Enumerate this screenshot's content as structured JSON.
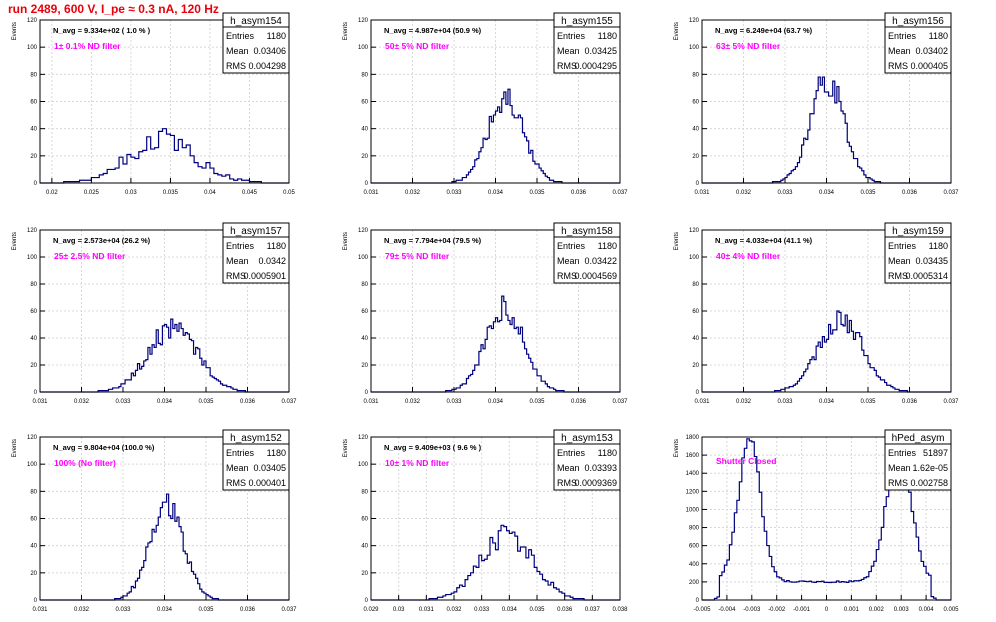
{
  "title": "run 2489,   600 V, I_pe ≈ 0.3 nA, 120 Hz",
  "colors": {
    "title": "#e8000b",
    "histogram": "#00007f",
    "annotation": "#ff00ff",
    "grid": "#d8d8d8",
    "frame": "#000000"
  },
  "chart_data": [
    {
      "type": "histogram",
      "name": "h_asym154",
      "stats": {
        "entries": "1180",
        "mean": "0.03406",
        "rms": "0.004298"
      },
      "navg": "N_avg = 9.334e+02 ( 1.0 % )",
      "annotation": "1± 0.1% ND filter",
      "ylabel": "Events",
      "xlabel": "",
      "xlim": [
        0.0185,
        0.05
      ],
      "ylim": [
        0,
        120
      ],
      "xticks": [
        0.02,
        0.025,
        0.03,
        0.035,
        0.04,
        0.045,
        0.05
      ],
      "xtick_labels": [
        "0.02",
        "0.025",
        "0.03",
        "0.035",
        "0.04",
        "0.045",
        "0.05"
      ],
      "yticks": [
        0,
        20,
        40,
        60,
        80,
        100,
        120
      ],
      "shape": "gauss",
      "mu": 0.034,
      "sigma": 0.0043,
      "peak": 32,
      "bin_width": 0.0005,
      "seed": 154,
      "noise": 0.3
    },
    {
      "type": "histogram",
      "name": "h_asym155",
      "stats": {
        "entries": "1180",
        "mean": "0.03425",
        "rms": "0.0004295"
      },
      "navg": "N_avg = 4.987e+04 (50.9 %)",
      "annotation": "50± 5% ND filter",
      "ylabel": "Events",
      "xlabel": "",
      "xlim": [
        0.031,
        0.037
      ],
      "ylim": [
        0,
        120
      ],
      "xticks": [
        0.031,
        0.032,
        0.033,
        0.034,
        0.035,
        0.036,
        0.037
      ],
      "xtick_labels": [
        "0.031",
        "0.032",
        "0.033",
        "0.034",
        "0.035",
        "0.036",
        "0.037"
      ],
      "yticks": [
        0,
        20,
        40,
        60,
        80,
        100,
        120
      ],
      "shape": "gauss",
      "mu": 0.03425,
      "sigma": 0.00043,
      "peak": 62,
      "bin_width": 5e-05,
      "seed": 155,
      "noise": 0.15
    },
    {
      "type": "histogram",
      "name": "h_asym156",
      "stats": {
        "entries": "1180",
        "mean": "0.03402",
        "rms": "0.000405"
      },
      "navg": "N_avg = 6.249e+04 (63.7 %)",
      "annotation": "63± 5% ND filter",
      "ylabel": "Events",
      "xlabel": "",
      "xlim": [
        0.031,
        0.037
      ],
      "ylim": [
        0,
        120
      ],
      "xticks": [
        0.031,
        0.032,
        0.033,
        0.034,
        0.035,
        0.036,
        0.037
      ],
      "xtick_labels": [
        "0.031",
        "0.032",
        "0.033",
        "0.034",
        "0.035",
        "0.036",
        "0.037"
      ],
      "yticks": [
        0,
        20,
        40,
        60,
        80,
        100,
        120
      ],
      "shape": "gauss",
      "mu": 0.03402,
      "sigma": 0.000405,
      "peak": 76,
      "bin_width": 5e-05,
      "seed": 156,
      "noise": 0.15
    },
    {
      "type": "histogram",
      "name": "h_asym157",
      "stats": {
        "entries": "1180",
        "mean": "0.0342",
        "rms": "0.0005901"
      },
      "navg": "N_avg = 2.573e+04 (26.2 %)",
      "annotation": "25± 2.5% ND filter",
      "ylabel": "Events",
      "xlabel": "",
      "xlim": [
        0.031,
        0.037
      ],
      "ylim": [
        0,
        120
      ],
      "xticks": [
        0.031,
        0.032,
        0.033,
        0.034,
        0.035,
        0.036,
        0.037
      ],
      "xtick_labels": [
        "0.031",
        "0.032",
        "0.033",
        "0.034",
        "0.035",
        "0.036",
        "0.037"
      ],
      "yticks": [
        0,
        20,
        40,
        60,
        80,
        100,
        120
      ],
      "shape": "gauss",
      "mu": 0.0342,
      "sigma": 0.00059,
      "peak": 48,
      "bin_width": 5e-05,
      "seed": 157,
      "noise": 0.18
    },
    {
      "type": "histogram",
      "name": "h_asym158",
      "stats": {
        "entries": "1180",
        "mean": "0.03422",
        "rms": "0.0004569"
      },
      "navg": "N_avg = 7.794e+04 (79.5 %)",
      "annotation": "79± 5% ND filter",
      "ylabel": "Events",
      "xlabel": "",
      "xlim": [
        0.031,
        0.037
      ],
      "ylim": [
        0,
        120
      ],
      "xticks": [
        0.031,
        0.032,
        0.033,
        0.034,
        0.035,
        0.036,
        0.037
      ],
      "xtick_labels": [
        "0.031",
        "0.032",
        "0.033",
        "0.034",
        "0.035",
        "0.036",
        "0.037"
      ],
      "yticks": [
        0,
        20,
        40,
        60,
        80,
        100,
        120
      ],
      "shape": "gauss",
      "mu": 0.03422,
      "sigma": 0.000457,
      "peak": 62,
      "bin_width": 5e-05,
      "seed": 158,
      "noise": 0.15
    },
    {
      "type": "histogram",
      "name": "h_asym159",
      "stats": {
        "entries": "1180",
        "mean": "0.03435",
        "rms": "0.0005314"
      },
      "navg": "N_avg = 4.033e+04 (41.1 %)",
      "annotation": "40± 4% ND filter",
      "ylabel": "Events",
      "xlabel": "",
      "xlim": [
        0.031,
        0.037
      ],
      "ylim": [
        0,
        120
      ],
      "xticks": [
        0.031,
        0.032,
        0.033,
        0.034,
        0.035,
        0.036,
        0.037
      ],
      "xtick_labels": [
        "0.031",
        "0.032",
        "0.033",
        "0.034",
        "0.035",
        "0.036",
        "0.037"
      ],
      "yticks": [
        0,
        20,
        40,
        60,
        80,
        100,
        120
      ],
      "shape": "gauss",
      "mu": 0.03435,
      "sigma": 0.00053,
      "peak": 54,
      "bin_width": 5e-05,
      "seed": 159,
      "noise": 0.15
    },
    {
      "type": "histogram",
      "name": "h_asym152",
      "stats": {
        "entries": "1180",
        "mean": "0.03405",
        "rms": "0.000401"
      },
      "navg": "N_avg = 9.804e+04 (100.0 %)",
      "annotation": "100% (No filter)",
      "ylabel": "Events",
      "xlabel": "",
      "xlim": [
        0.031,
        0.037
      ],
      "ylim": [
        0,
        120
      ],
      "xticks": [
        0.031,
        0.032,
        0.033,
        0.034,
        0.035,
        0.036,
        0.037
      ],
      "xtick_labels": [
        "0.031",
        "0.032",
        "0.033",
        "0.034",
        "0.035",
        "0.036",
        "0.037"
      ],
      "yticks": [
        0,
        20,
        40,
        60,
        80,
        100,
        120
      ],
      "shape": "gauss",
      "mu": 0.03405,
      "sigma": 0.0004,
      "peak": 72,
      "bin_width": 5e-05,
      "seed": 152,
      "noise": 0.15
    },
    {
      "type": "histogram",
      "name": "h_asym153",
      "stats": {
        "entries": "1180",
        "mean": "0.03393",
        "rms": "0.0009369"
      },
      "navg": "N_avg = 9.409e+03 ( 9.6 % )",
      "annotation": "10± 1% ND filter",
      "ylabel": "Events",
      "xlabel": "",
      "xlim": [
        0.029,
        0.038
      ],
      "ylim": [
        0,
        120
      ],
      "xticks": [
        0.029,
        0.03,
        0.031,
        0.032,
        0.033,
        0.034,
        0.035,
        0.036,
        0.037,
        0.038
      ],
      "xtick_labels": [
        "0.029",
        "0.03",
        "0.031",
        "0.032",
        "0.033",
        "0.034",
        "0.035",
        "0.036",
        "0.037",
        "0.038"
      ],
      "yticks": [
        0,
        20,
        40,
        60,
        80,
        100,
        120
      ],
      "shape": "gauss",
      "mu": 0.03393,
      "sigma": 0.00094,
      "peak": 48,
      "bin_width": 0.0001,
      "seed": 153,
      "noise": 0.18
    },
    {
      "type": "histogram",
      "name": "hPed_asym",
      "stats": {
        "entries": "51897",
        "mean": "1.62e-05",
        "rms": "0.002758"
      },
      "navg": "",
      "annotation": "Shutter Closed",
      "ylabel": "Events",
      "xlabel": "",
      "xlim": [
        -0.005,
        0.005
      ],
      "ylim": [
        0,
        1800
      ],
      "xticks": [
        -0.005,
        -0.004,
        -0.003,
        -0.002,
        -0.001,
        0,
        0.001,
        0.002,
        0.003,
        0.004,
        0.005
      ],
      "xtick_labels": [
        "-0.005",
        "-0.004",
        "-0.003",
        "-0.002",
        "-0.001",
        "0",
        "0.001",
        "0.002",
        "0.003",
        "0.004",
        "0.005"
      ],
      "yticks": [
        0,
        200,
        400,
        600,
        800,
        1000,
        1200,
        1400,
        1600,
        1800
      ],
      "shape": "bimodal",
      "peaks": [
        [
          -0.0031,
          0.00045,
          1560
        ],
        [
          0.0029,
          0.0005,
          1440
        ]
      ],
      "floor": 200,
      "edges": [
        -0.0043,
        0.0042
      ],
      "bin_width": 0.0001,
      "seed": 999,
      "noise": 0.05
    }
  ]
}
